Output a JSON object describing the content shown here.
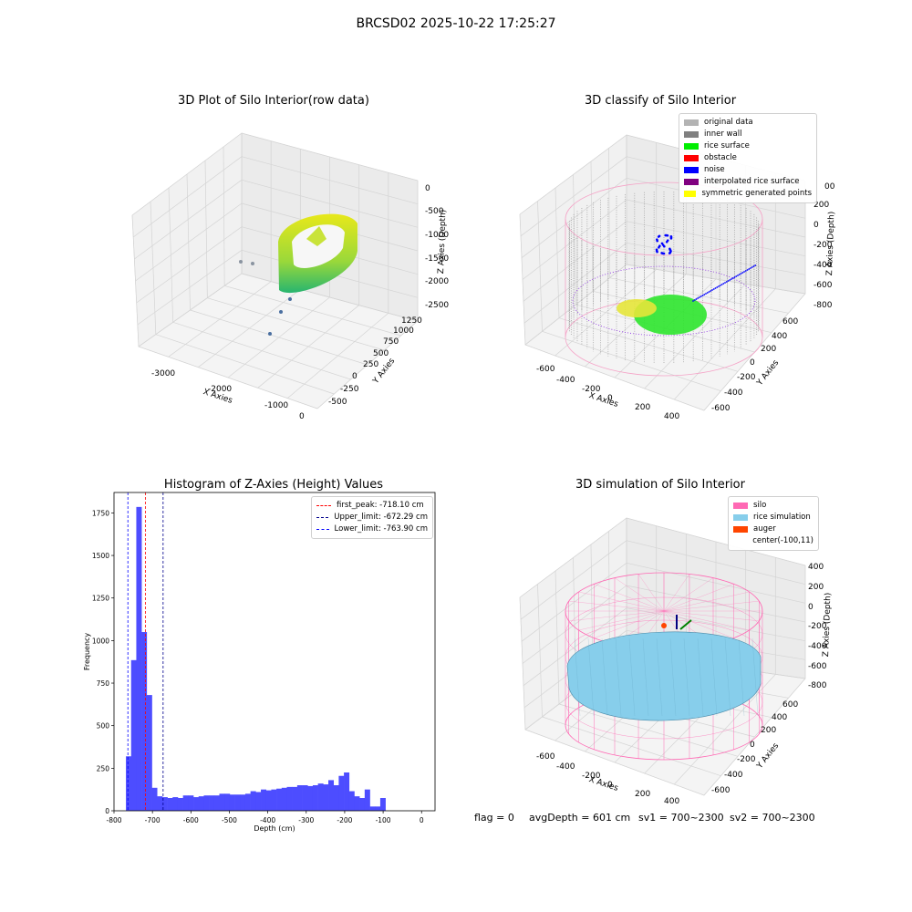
{
  "figure": {
    "suptitle": "BRCSD02 2025-10-22 17:25:27"
  },
  "panel1": {
    "title": "3D Plot of Silo Interior(row data)",
    "xlabel": "X Axies",
    "ylabel": "Y Axies",
    "zlabel": "Z Axies (Depth)",
    "xticks": [
      "-3000",
      "-2000",
      "-1000",
      "0"
    ],
    "yticks": [
      "-500",
      "-250",
      "0",
      "250",
      "500",
      "750",
      "1000",
      "1250"
    ],
    "zticks": [
      "0",
      "-500",
      "-1000",
      "-1500",
      "-2000",
      "-2500"
    ]
  },
  "panel2": {
    "title": "3D classify of Silo Interior",
    "xlabel": "X Axies",
    "ylabel": "Y Axies",
    "zlabel": "Z Axies (Depth)",
    "xticks": [
      "-600",
      "-400",
      "-200",
      "0",
      "200",
      "400"
    ],
    "yticks": [
      "-600",
      "-400",
      "-200",
      "0",
      "200",
      "400",
      "600"
    ],
    "zticks": [
      "200",
      "0",
      "-200",
      "-400",
      "-600",
      "-800"
    ],
    "ztick_top_partial": "00",
    "legend": [
      {
        "label": "original data",
        "color": "#b3b3b3"
      },
      {
        "label": "inner wall",
        "color": "#808080"
      },
      {
        "label": "rice surface",
        "color": "#00ee00"
      },
      {
        "label": "obstacle",
        "color": "#ff0000"
      },
      {
        "label": "noise",
        "color": "#0000ff"
      },
      {
        "label": "interpolated rice surface",
        "color": "#800080"
      },
      {
        "label": "symmetric generated points",
        "color": "#ffff00"
      }
    ]
  },
  "panel3": {
    "chart_data": {
      "type": "bar",
      "title": "Histogram of Z-Axies (Height) Values",
      "xlabel": "Depth (cm)",
      "ylabel": "Frequency",
      "xlim": [
        -800,
        35
      ],
      "ylim": [
        0,
        1870
      ],
      "bin_width": 13.5,
      "bin_start": -769,
      "values": [
        320,
        885,
        1785,
        1050,
        680,
        135,
        85,
        80,
        75,
        80,
        75,
        90,
        90,
        80,
        85,
        90,
        90,
        90,
        100,
        100,
        95,
        95,
        95,
        100,
        115,
        110,
        125,
        120,
        125,
        130,
        135,
        140,
        140,
        150,
        150,
        145,
        150,
        160,
        155,
        180,
        150,
        205,
        225,
        115,
        85,
        75,
        125,
        25,
        25,
        75
      ],
      "xticks": [
        "-800",
        "-700",
        "-600",
        "-500",
        "-400",
        "-300",
        "-200",
        "-100",
        "0"
      ],
      "yticks": [
        "0",
        "250",
        "500",
        "750",
        "1000",
        "1250",
        "1500",
        "1750"
      ],
      "bar_color": "#4d4dff",
      "lines": [
        {
          "label": "first_peak: -718.10 cm",
          "x": -718.1,
          "color": "#ff0000"
        },
        {
          "label": "Upper_limit: -672.29 cm",
          "x": -672.29,
          "color": "#00008b"
        },
        {
          "label": "Lower_limit: -763.90 cm",
          "x": -763.9,
          "color": "#0000ff"
        }
      ]
    }
  },
  "panel4": {
    "title": "3D simulation of Silo Interior",
    "xlabel": "X Axies",
    "ylabel": "Y Axies",
    "zlabel": "Z Axies (Depth)",
    "xticks": [
      "-600",
      "-400",
      "-200",
      "0",
      "200",
      "400"
    ],
    "yticks": [
      "-600",
      "-400",
      "-200",
      "0",
      "200",
      "400",
      "600"
    ],
    "zticks": [
      "400",
      "200",
      "0",
      "-200",
      "-400",
      "-600",
      "-800"
    ],
    "legend": [
      {
        "label": "silo",
        "color": "#ff69b4"
      },
      {
        "label": "rice simulation",
        "color": "#87ceeb"
      },
      {
        "label": "auger",
        "color": "#ff4500"
      },
      {
        "label": "center(-100,11)",
        "color": ""
      }
    ],
    "status": {
      "flag": "flag = 0",
      "avg": "avgDepth = 601 cm",
      "sv1": "sv1 = 700~2300",
      "sv2": "sv2 = 700~2300"
    }
  }
}
